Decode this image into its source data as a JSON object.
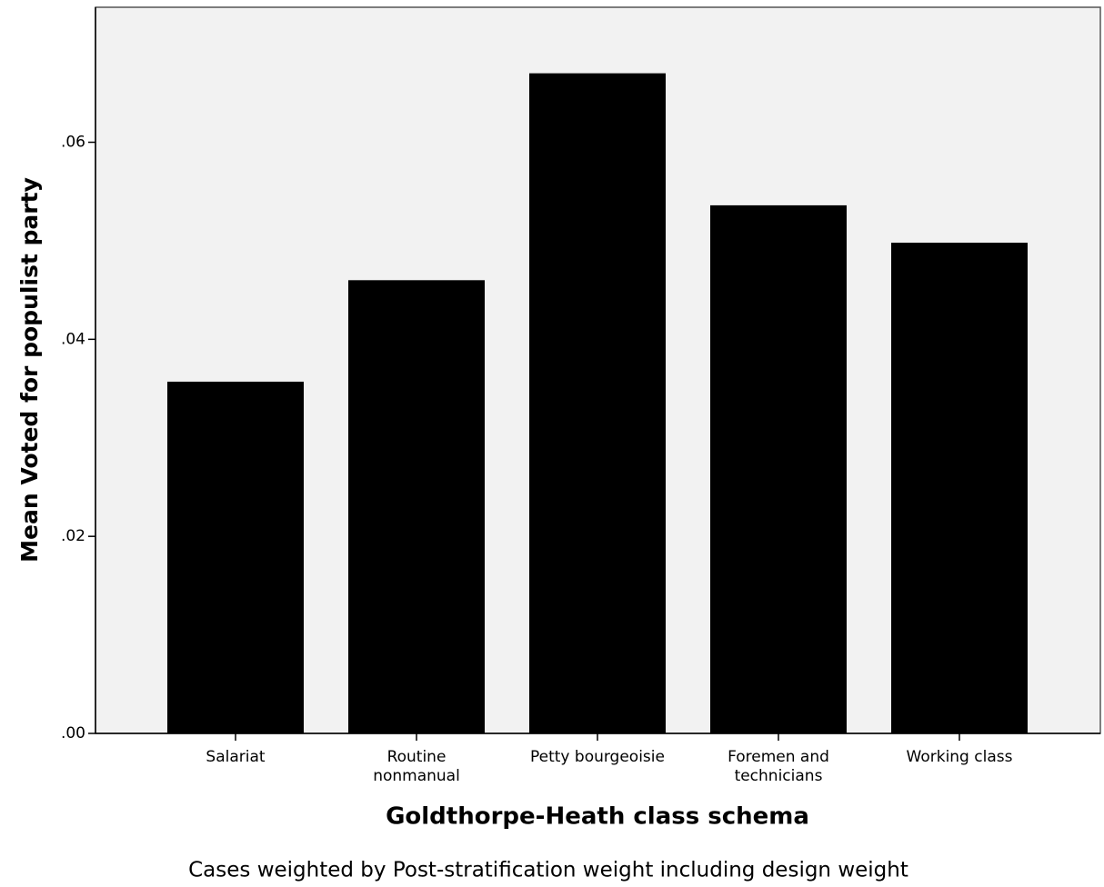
{
  "chart_data": {
    "type": "bar",
    "xlabel": "Goldthorpe-Heath class schema",
    "ylabel": "Mean Voted for populist party",
    "footnote": "Cases weighted by Post-stratification weight including design weight",
    "categories": [
      "Salariat",
      "Routine\nnonmanual",
      "Petty bourgeoisie",
      "Foremen and\ntechnicians",
      "Working class"
    ],
    "values": [
      0.0357,
      0.046,
      0.067,
      0.0536,
      0.0498
    ],
    "color": "#000000",
    "ylim": [
      0,
      0.0737
    ],
    "yticks": [
      {
        "value": 0,
        "label": ".00"
      },
      {
        "value": 0.02,
        "label": ".02"
      },
      {
        "value": 0.04,
        "label": ".04"
      },
      {
        "value": 0.06,
        "label": ".06"
      }
    ],
    "grid": false
  }
}
